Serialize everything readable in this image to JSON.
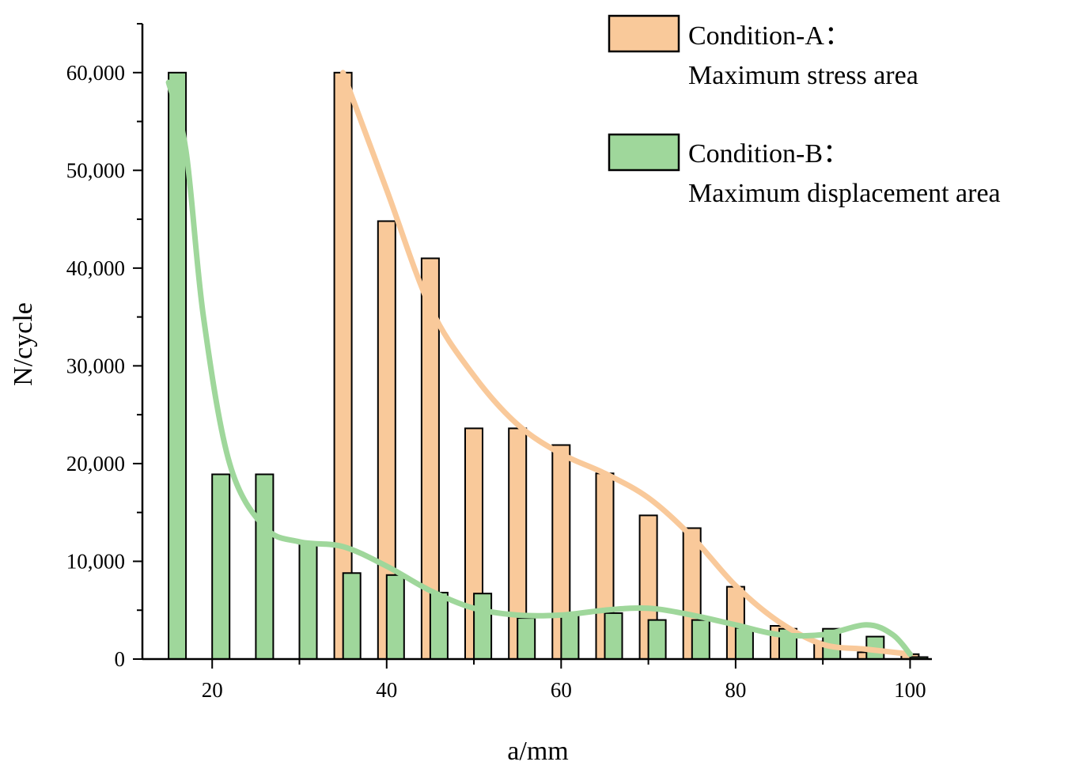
{
  "chart_data": {
    "type": "bar",
    "title": "",
    "xlabel": "a/mm",
    "ylabel": "N/cycle",
    "xlim": [
      12,
      102.5
    ],
    "ylim": [
      0,
      65000
    ],
    "x_ticks": [
      20,
      40,
      60,
      80,
      100
    ],
    "x_tick_labels": [
      "20",
      "40",
      "60",
      "80",
      "100"
    ],
    "y_ticks": [
      0,
      10000,
      20000,
      30000,
      40000,
      50000,
      60000
    ],
    "y_tick_labels": [
      "0",
      "10,000",
      "20,000",
      "30,000",
      "40,000",
      "50,000",
      "60,000"
    ],
    "legend_position": "top-right",
    "series": [
      {
        "name": "Condition-A",
        "legend_line1": "Condition-A：",
        "legend_line2": "Maximum stress area",
        "color": "#f9c99a",
        "x": [
          35,
          40,
          45,
          50,
          55,
          60,
          65,
          70,
          75,
          80,
          85,
          90,
          95,
          100
        ],
        "values": [
          60000,
          44800,
          41000,
          23600,
          23600,
          21900,
          19000,
          14700,
          13400,
          7400,
          3400,
          1800,
          700,
          500
        ],
        "trend": [
          [
            35,
            60000
          ],
          [
            40,
            48000
          ],
          [
            45,
            36000
          ],
          [
            50,
            29000
          ],
          [
            55,
            24000
          ],
          [
            60,
            21000
          ],
          [
            65,
            19000
          ],
          [
            70,
            16500
          ],
          [
            75,
            12500
          ],
          [
            80,
            7500
          ],
          [
            85,
            3800
          ],
          [
            90,
            1500
          ],
          [
            95,
            1000
          ],
          [
            100,
            500
          ]
        ]
      },
      {
        "name": "Condition-B",
        "legend_line1": "Condition-B：",
        "legend_line2": "Maximum displacement area",
        "color": "#9fd79b",
        "x": [
          16,
          21,
          26,
          31,
          36,
          41,
          46,
          51,
          56,
          61,
          66,
          71,
          76,
          81,
          86,
          91,
          96,
          101
        ],
        "values": [
          60000,
          18900,
          18900,
          11800,
          8800,
          8600,
          6800,
          6700,
          4200,
          4600,
          4700,
          4000,
          4000,
          3200,
          3100,
          3100,
          2300,
          200
        ],
        "trend": [
          [
            15,
            59000
          ],
          [
            17,
            52000
          ],
          [
            19,
            35000
          ],
          [
            22,
            20000
          ],
          [
            26,
            13500
          ],
          [
            30,
            12000
          ],
          [
            35,
            11500
          ],
          [
            40,
            9500
          ],
          [
            45,
            7000
          ],
          [
            50,
            5200
          ],
          [
            55,
            4500
          ],
          [
            60,
            4500
          ],
          [
            65,
            5000
          ],
          [
            70,
            5200
          ],
          [
            75,
            4500
          ],
          [
            80,
            3500
          ],
          [
            85,
            2500
          ],
          [
            90,
            2500
          ],
          [
            95,
            3500
          ],
          [
            98,
            2500
          ],
          [
            100,
            500
          ]
        ]
      }
    ]
  }
}
